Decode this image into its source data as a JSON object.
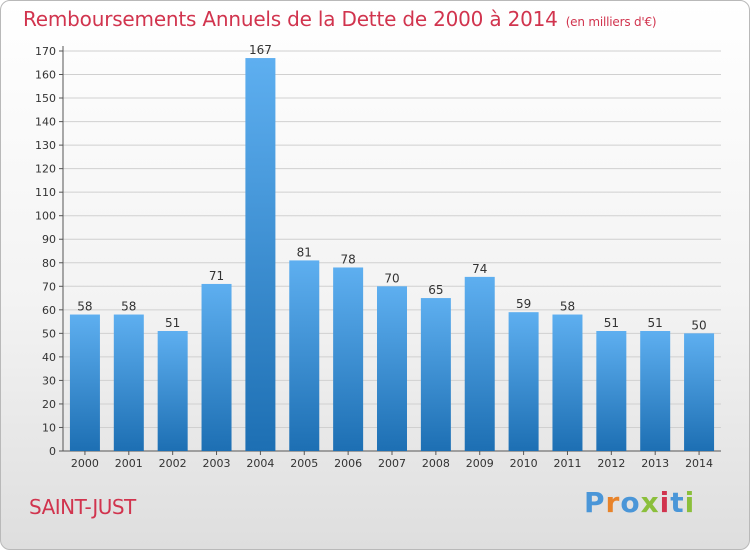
{
  "header": {
    "title": "Remboursements Annuels de la Dette de 2000 à 2014",
    "unit": "(en milliers d'€)"
  },
  "footer": {
    "city": "SAINT-JUST",
    "logo_text": "Proxiti"
  },
  "colors": {
    "title": "#d1344e",
    "bar_top": "#5eaff0",
    "bar_bottom": "#1d6fb3",
    "logo": [
      "#4a96d8",
      "#e8832a",
      "#4a96d8",
      "#8bbf3b",
      "#d1344e",
      "#4a96d8",
      "#8bbf3b"
    ]
  },
  "chart_data": {
    "type": "bar",
    "title": "Remboursements Annuels de la Dette de 2000 à 2014",
    "ylabel": "",
    "xlabel": "",
    "categories": [
      "2000",
      "2001",
      "2002",
      "2003",
      "2004",
      "2005",
      "2006",
      "2007",
      "2008",
      "2009",
      "2010",
      "2011",
      "2012",
      "2013",
      "2014"
    ],
    "values": [
      58,
      58,
      51,
      71,
      167,
      81,
      78,
      70,
      65,
      74,
      59,
      58,
      51,
      51,
      50
    ],
    "ylim": [
      0,
      170
    ],
    "ytick_step": 10,
    "grid": true,
    "data_labels": true
  }
}
